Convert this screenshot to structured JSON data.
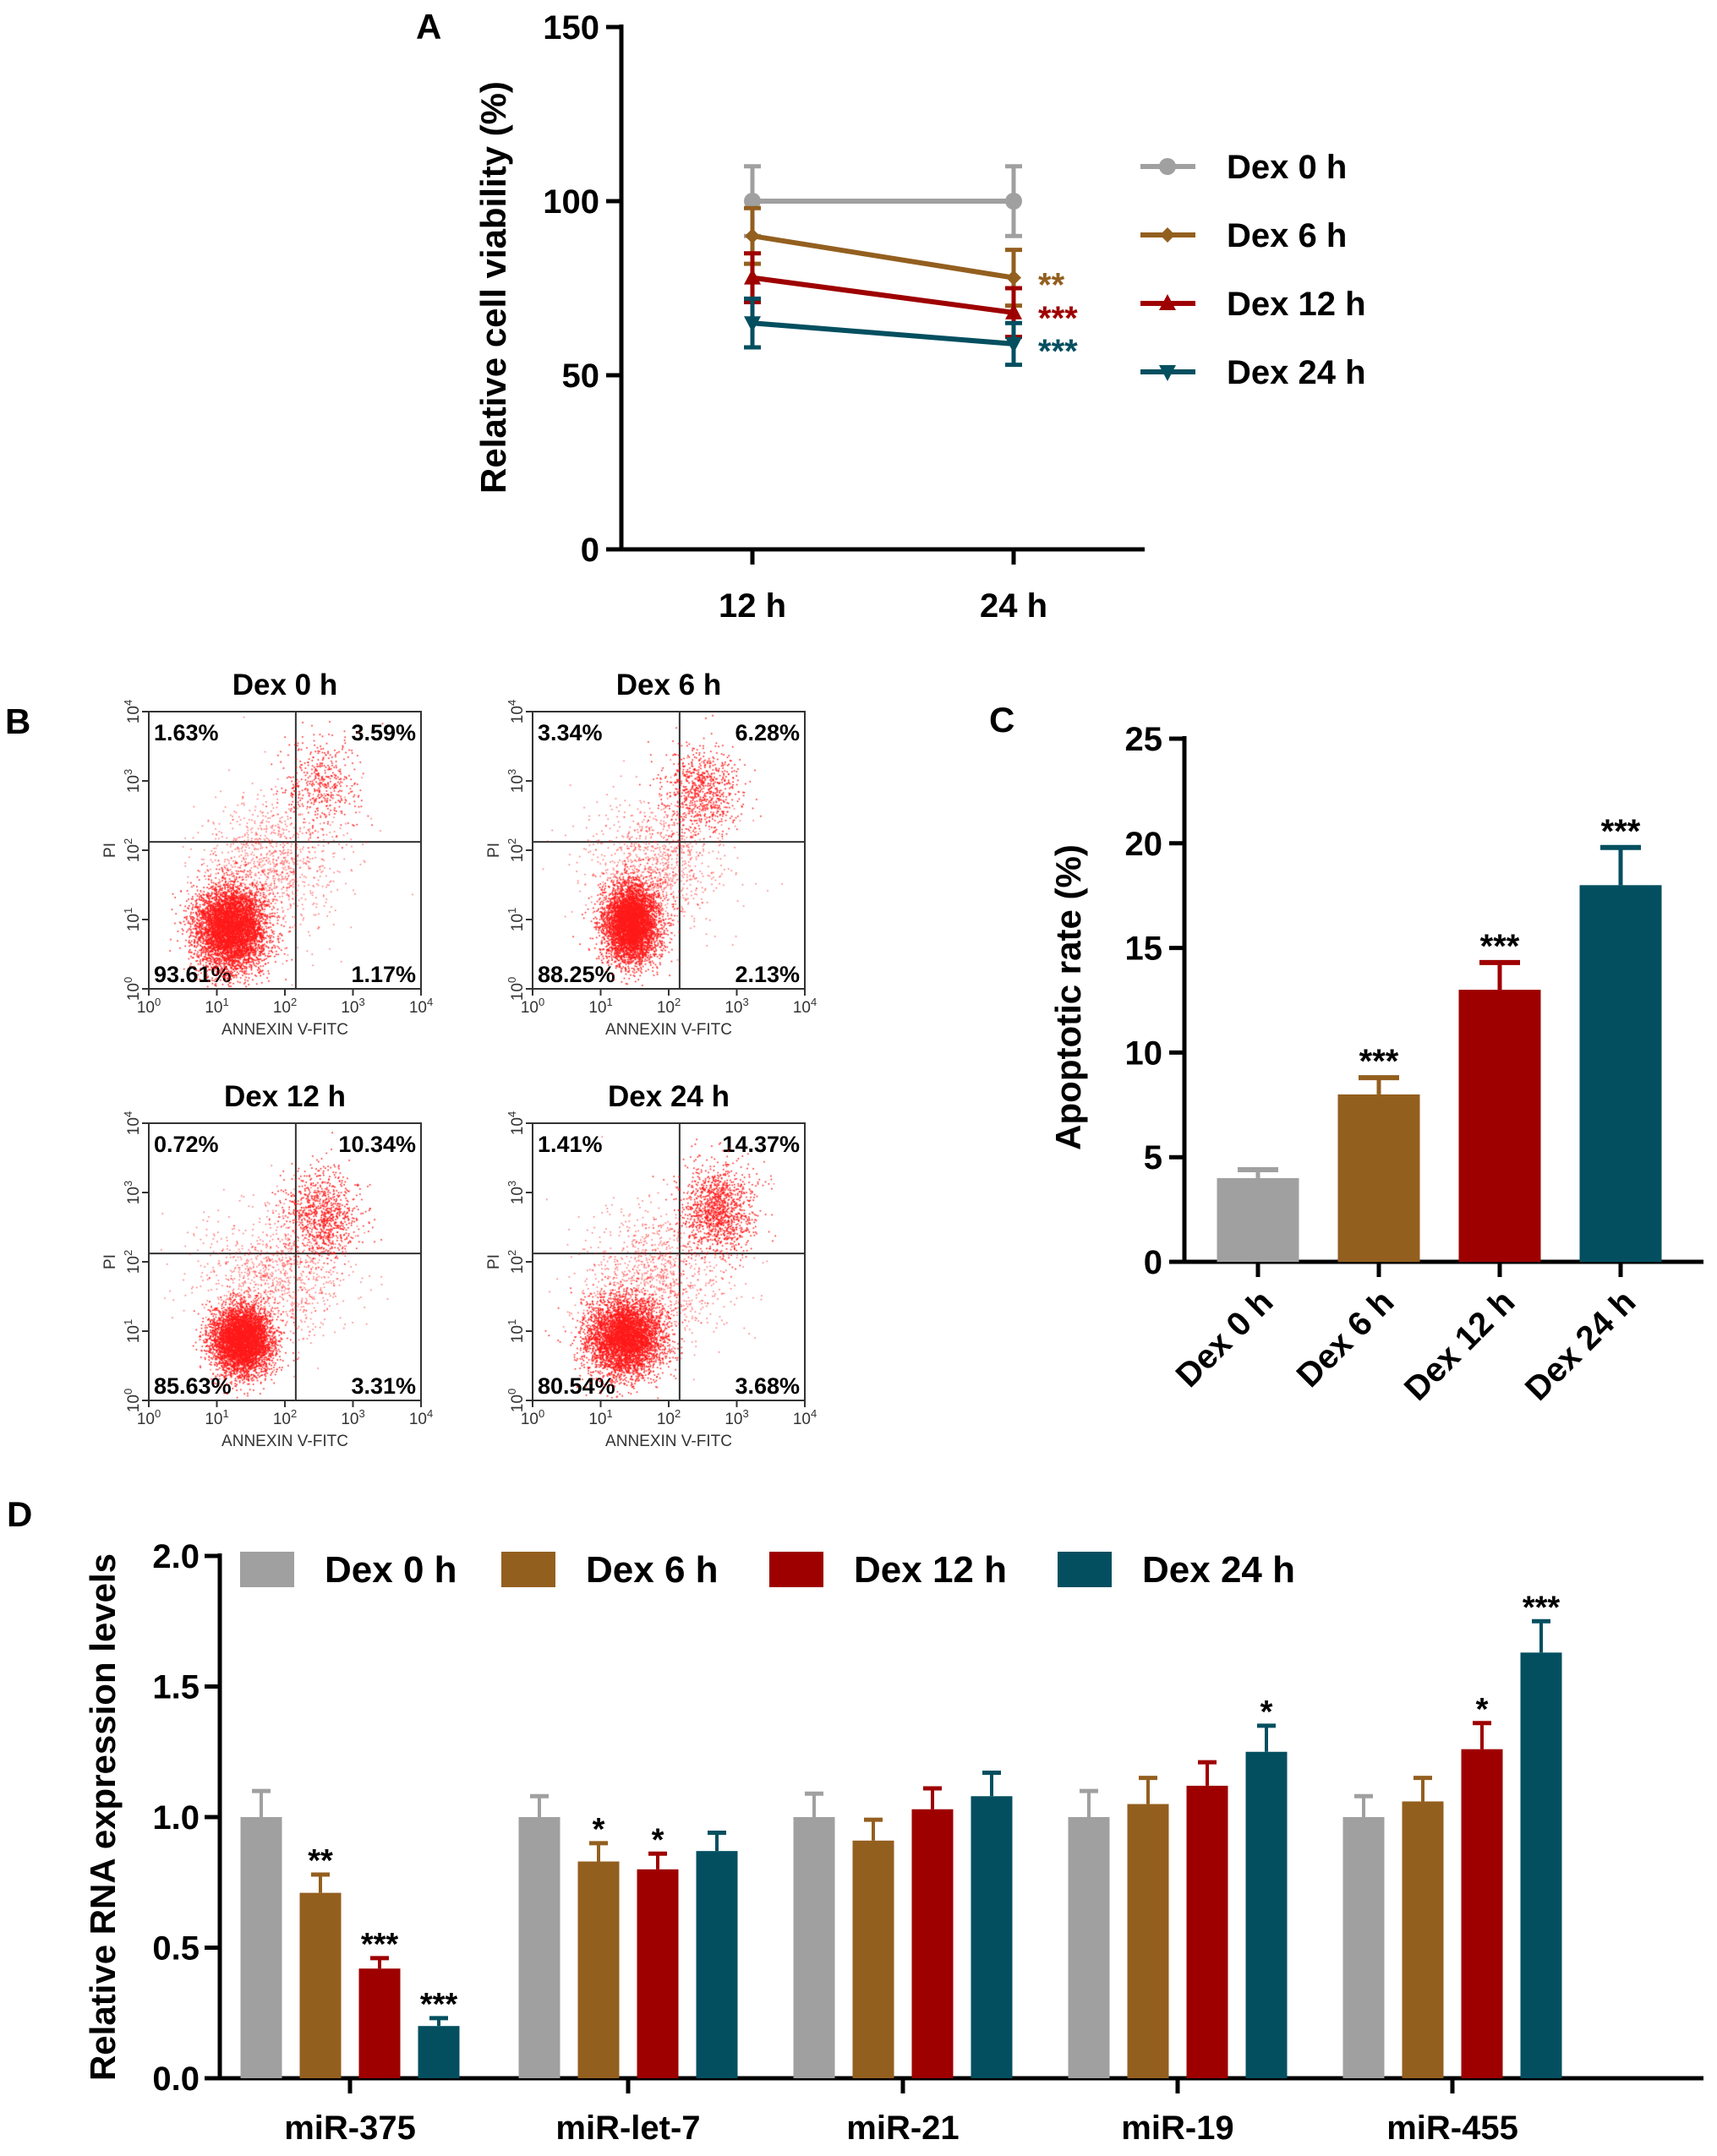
{
  "colors": {
    "dex0": "#a0a0a0",
    "dex6": "#935f1f",
    "dex12": "#9e0000",
    "dex24": "#034f60",
    "scatter": "#ff1a1a"
  },
  "chart_data": [
    {
      "panel": "A",
      "type": "line",
      "ylabel": "Relative cell viability (%)",
      "xlabel": "",
      "categories": [
        "12 h",
        "24 h"
      ],
      "ylim": [
        0,
        150
      ],
      "yticks": [
        0,
        50,
        100,
        150
      ],
      "legend": "right",
      "series": [
        {
          "name": "Dex 0 h",
          "marker": "circle",
          "values": [
            100,
            100
          ],
          "errors": [
            10,
            10
          ],
          "sig": ""
        },
        {
          "name": "Dex 6 h",
          "marker": "diamond",
          "values": [
            90,
            78
          ],
          "errors": [
            8,
            8
          ],
          "sig": "**"
        },
        {
          "name": "Dex 12 h",
          "marker": "triangle-up",
          "values": [
            78,
            68
          ],
          "errors": [
            7,
            7
          ],
          "sig": "***"
        },
        {
          "name": "Dex 24 h",
          "marker": "triangle-down",
          "values": [
            65,
            59
          ],
          "errors": [
            7,
            6
          ],
          "sig": "***"
        }
      ]
    },
    {
      "panel": "B",
      "type": "scatter",
      "xlabel": "ANNEXIN V-FITC",
      "ylabel": "PI",
      "axis_scale": "log",
      "ticks": [
        "10",
        "10",
        "10",
        "10",
        "10"
      ],
      "tick_exponents": [
        "0",
        "1",
        "2",
        "3",
        "4"
      ],
      "plots": [
        {
          "title": "Dex 0 h",
          "upper_left": "1.63%",
          "upper_right": "3.59%",
          "lower_left": "93.61%",
          "lower_right": "1.17%"
        },
        {
          "title": "Dex 6 h",
          "upper_left": "3.34%",
          "upper_right": "6.28%",
          "lower_left": "88.25%",
          "lower_right": "2.13%"
        },
        {
          "title": "Dex 12 h",
          "upper_left": "0.72%",
          "upper_right": "10.34%",
          "lower_left": "85.63%",
          "lower_right": "3.31%"
        },
        {
          "title": "Dex 24 h",
          "upper_left": "1.41%",
          "upper_right": "14.37%",
          "lower_left": "80.54%",
          "lower_right": "3.68%"
        }
      ]
    },
    {
      "panel": "C",
      "type": "bar",
      "ylabel": "Apoptotic rate (%)",
      "xlabel": "",
      "categories": [
        "Dex 0 h",
        "Dex 6 h",
        "Dex 12 h",
        "Dex 24 h"
      ],
      "values": [
        4,
        8,
        13,
        18
      ],
      "errors": [
        0.4,
        0.8,
        1.3,
        1.8
      ],
      "sig": [
        "",
        "***",
        "***",
        "***"
      ],
      "ylim": [
        0,
        25
      ],
      "yticks": [
        0,
        5,
        10,
        15,
        20,
        25
      ]
    },
    {
      "panel": "D",
      "type": "bar",
      "ylabel": "Relative RNA expression levels",
      "xlabel": "",
      "categories": [
        "miR-375",
        "miR-let-7",
        "miR-21",
        "miR-19",
        "miR-455"
      ],
      "ylim": [
        0,
        2.0
      ],
      "yticks": [
        "0.0",
        "0.5",
        "1.0",
        "1.5",
        "2.0"
      ],
      "legend": "top",
      "series": [
        {
          "name": "Dex 0 h",
          "values": [
            1.0,
            1.0,
            1.0,
            1.0,
            1.0
          ],
          "errors": [
            0.1,
            0.08,
            0.09,
            0.1,
            0.08
          ],
          "sig": [
            "",
            "",
            "",
            "",
            ""
          ]
        },
        {
          "name": "Dex 6 h",
          "values": [
            0.71,
            0.83,
            0.91,
            1.05,
            1.06
          ],
          "errors": [
            0.07,
            0.07,
            0.08,
            0.1,
            0.09
          ],
          "sig": [
            "**",
            "*",
            "",
            "",
            ""
          ]
        },
        {
          "name": "Dex 12 h",
          "values": [
            0.42,
            0.8,
            1.03,
            1.12,
            1.26
          ],
          "errors": [
            0.04,
            0.06,
            0.08,
            0.09,
            0.1
          ],
          "sig": [
            "***",
            "*",
            "",
            "",
            "*"
          ]
        },
        {
          "name": "Dex 24 h",
          "values": [
            0.2,
            0.87,
            1.08,
            1.25,
            1.63
          ],
          "errors": [
            0.03,
            0.07,
            0.09,
            0.1,
            0.12
          ],
          "sig": [
            "***",
            "",
            "",
            "*",
            "***"
          ]
        }
      ]
    }
  ]
}
